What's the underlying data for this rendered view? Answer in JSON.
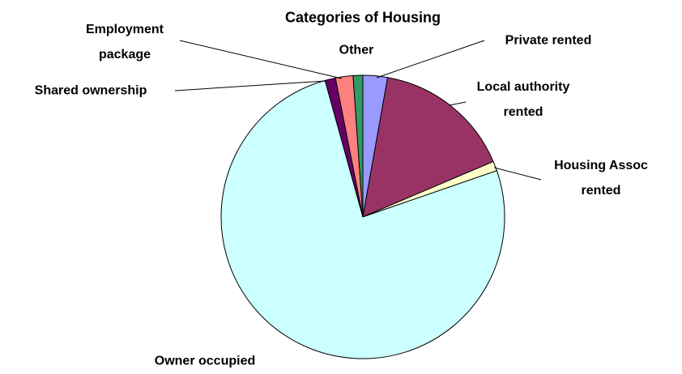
{
  "chart_data": {
    "type": "pie",
    "title": "Categories of Housing",
    "categories": [
      "Private rented",
      "Local authority rented",
      "Housing Assoc rented",
      "Owner occupied",
      "Shared ownership",
      "Employment package",
      "Other"
    ],
    "values": [
      2.8,
      15.8,
      1.1,
      76,
      1.2,
      2,
      1.1
    ],
    "colors": [
      "#9999ff",
      "#993366",
      "#ffffcc",
      "#ccffff",
      "#660066",
      "#ff8080",
      "#339966"
    ]
  }
}
